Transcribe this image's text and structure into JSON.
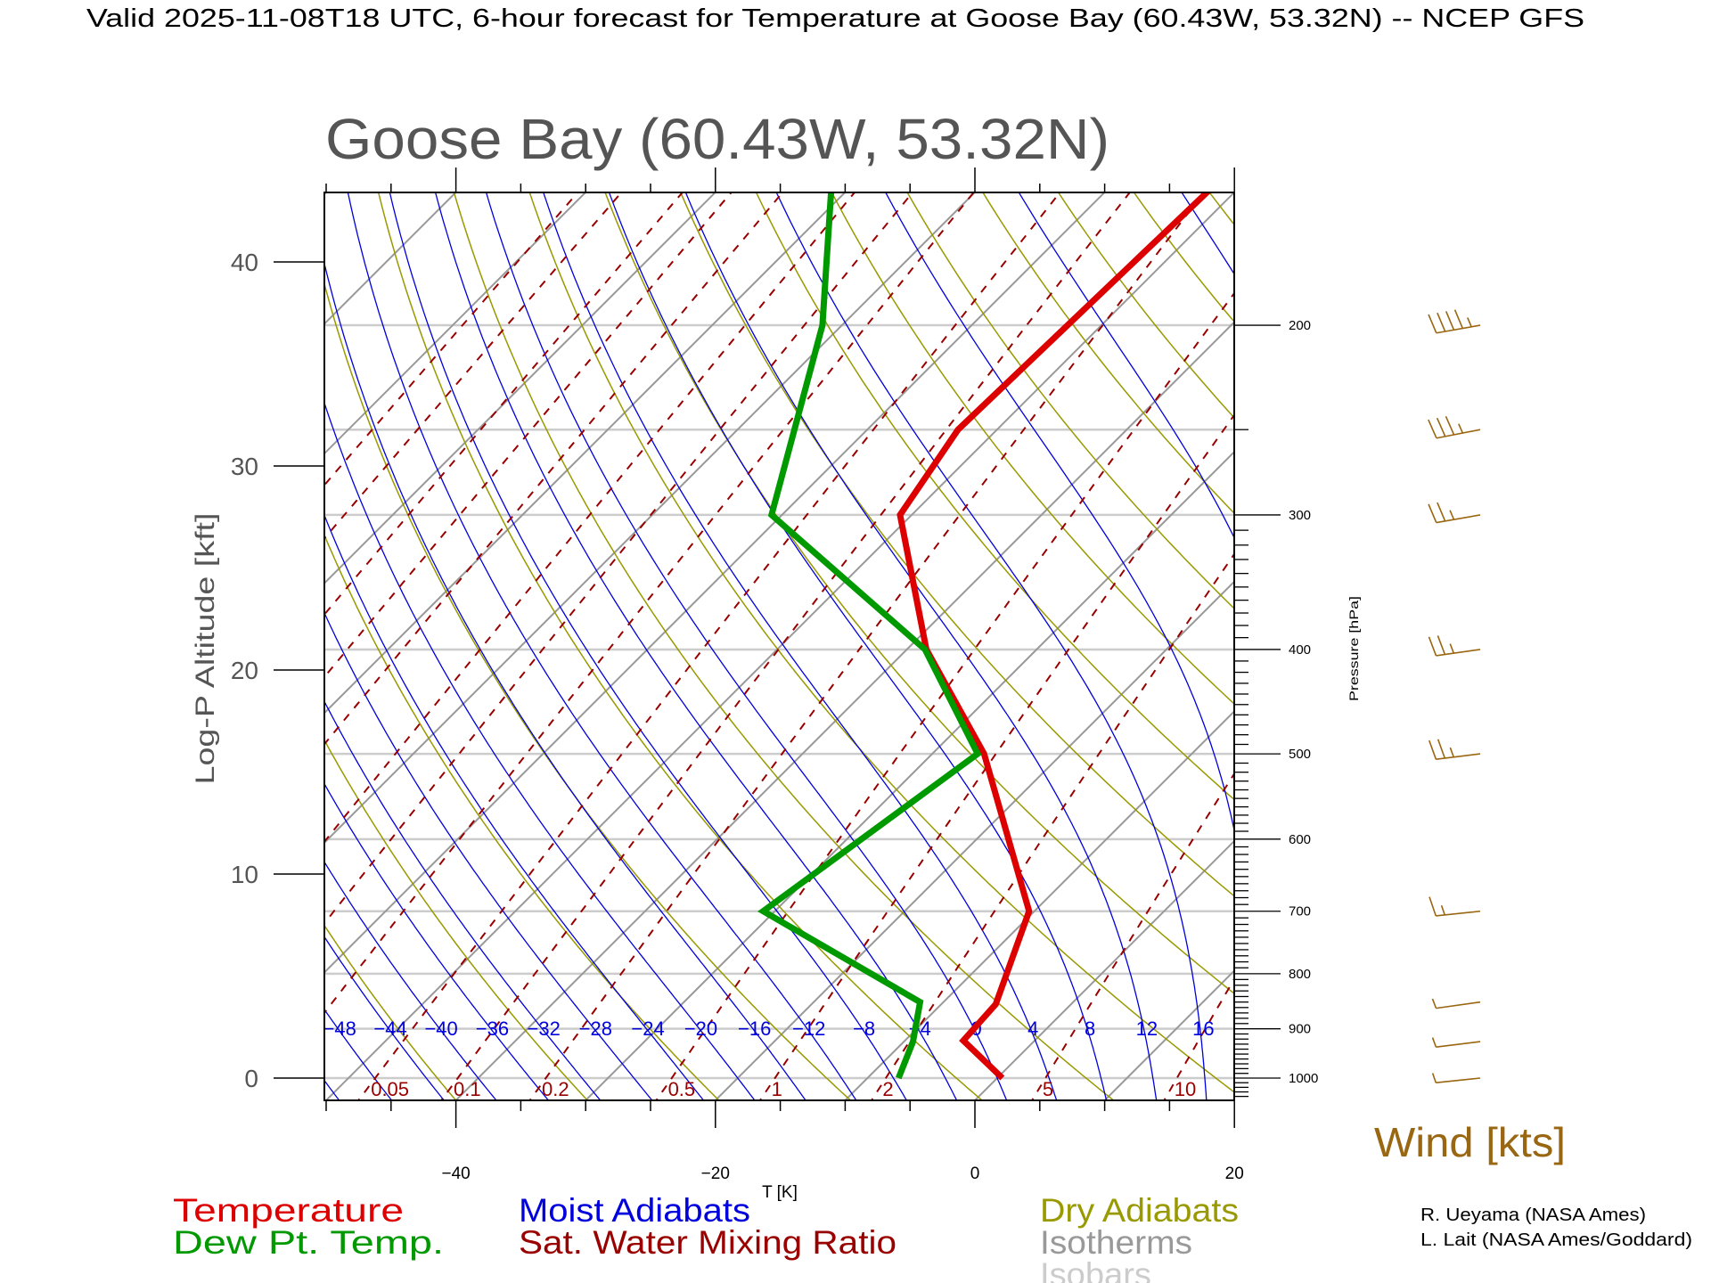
{
  "title": "Valid 2025-11-08T18 UTC, 6-hour forecast for Temperature at Goose Bay (60.43W, 53.32N) -- NCEP GFS",
  "subtitle": "Goose Bay (60.43W, 53.32N)",
  "colors": {
    "temperature": "#dd0000",
    "dewpoint": "#009900",
    "moist_adiabats": "#0000dd",
    "mixing_ratio": "#990000",
    "dry_adiabats": "#999900",
    "isotherms": "#999999",
    "isobars": "#cccccc",
    "wind": "#996611"
  },
  "legend": {
    "temperature": "Temperature",
    "dewpoint": "Dew Pt. Temp.",
    "moist_adiabats": "Moist Adiabats",
    "mixing_ratio": "Sat. Water Mixing Ratio",
    "dry_adiabats": "Dry Adiabats",
    "isotherms": "Isotherms",
    "isobars": "Isobars"
  },
  "wind_label": "Wind [kts]",
  "credits": [
    "R. Ueyama (NASA Ames)",
    "L. Lait (NASA Ames/Goddard)"
  ],
  "chart_data": {
    "type": "line",
    "title": "Goose Bay (60.43W, 53.32N)",
    "xlabel": "T [K]",
    "ylabel": "Log-P Altitude [kft]",
    "y2label": "Pressure [hPa]",
    "xlim": [
      -50,
      20
    ],
    "plim": [
      1050,
      150
    ],
    "x_ticks": [
      "-40",
      "-20",
      "0",
      "20"
    ],
    "x_tick_values": [
      -40,
      -20,
      0,
      20
    ],
    "altitude_ticks": [
      "0",
      "10",
      "20",
      "30",
      "40"
    ],
    "altitude_tick_values": [
      0,
      10,
      20,
      30,
      40
    ],
    "pressure_ticks": [
      "200",
      "300",
      "400",
      "500",
      "600",
      "700",
      "800",
      "900",
      "1000"
    ],
    "pressure_tick_values": [
      200,
      300,
      400,
      500,
      600,
      700,
      800,
      900,
      1000
    ],
    "moist_adiabat_labels": [
      "-48",
      "-44",
      "-40",
      "-36",
      "-32",
      "-28",
      "-24",
      "-20",
      "-16",
      "-12",
      "-8",
      "-4",
      "0",
      "4",
      "8",
      "12",
      "16"
    ],
    "moist_adiabat_values": [
      -48,
      -44,
      -40,
      -36,
      -32,
      -28,
      -24,
      -20,
      -16,
      -12,
      -8,
      -4,
      0,
      4,
      8,
      12,
      16
    ],
    "mixing_ratio_labels": [
      "0.05",
      "0.1",
      "0.2",
      "0.5",
      "1",
      "2",
      "5",
      "10"
    ],
    "mixing_ratio_values": [
      0.0001,
      0.0002,
      0.0005,
      0.001,
      0.002,
      0.005,
      0.01,
      0.02,
      0.05,
      0.1,
      0.2,
      0.5,
      1,
      2,
      5,
      10,
      20
    ],
    "dry_adiabat_thetas": [
      200,
      210,
      220,
      230,
      240,
      250,
      260,
      270,
      280,
      290,
      300,
      310,
      320,
      330,
      340,
      350,
      360,
      370,
      380,
      390,
      400,
      410,
      420,
      430,
      440,
      450,
      460,
      470,
      480
    ],
    "isotherm_values": [
      -150,
      -140,
      -130,
      -120,
      -110,
      -100,
      -90,
      -80,
      -70,
      -60,
      -50,
      -40,
      -30,
      -20,
      -10,
      0,
      10,
      20,
      30,
      40
    ],
    "isobar_values": [
      1000,
      900,
      800,
      700,
      600,
      500,
      400,
      300,
      250,
      200
    ],
    "series": [
      {
        "name": "Temperature",
        "pressure": [
          1000,
          923,
          854,
          700,
          500,
          400,
          300,
          250,
          150
        ],
        "values": [
          0.4,
          -5.5,
          -5.8,
          -10.4,
          -26.0,
          -38.5,
          -50.9,
          -53.0,
          -52.1
        ]
      },
      {
        "name": "Dew Pt. Temp.",
        "pressure": [
          1000,
          925,
          850,
          700,
          500,
          400,
          300,
          200,
          150
        ],
        "values": [
          -7.6,
          -9.3,
          -11.8,
          -30.9,
          -26.5,
          -38.6,
          -60.8,
          -71.5,
          -81.2
        ]
      }
    ],
    "winds": {
      "pressure": [
        200,
        250,
        300,
        400,
        500,
        700,
        850,
        925,
        1000
      ],
      "speed_kts": [
        45,
        35,
        25,
        25,
        25,
        15,
        5,
        5,
        5
      ],
      "direction_deg": [
        260,
        259,
        260,
        262,
        263,
        264,
        262,
        263,
        264
      ]
    }
  }
}
